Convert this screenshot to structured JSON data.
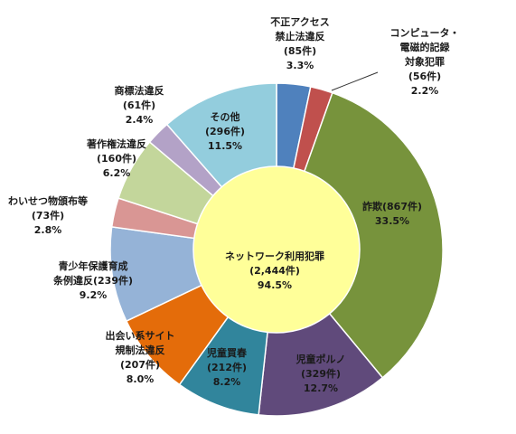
{
  "chart_data": {
    "type": "pie",
    "subtype": "donut",
    "center": {
      "lines": [
        "ネットワーク利用犯罪",
        "(2,444件)",
        "94.5%"
      ],
      "color": "#FFFF99"
    },
    "start_angle_deg": 0,
    "direction": "clockwise",
    "slices": [
      {
        "lines": [
          "不正アクセス",
          "禁止法違反",
          "(85件)",
          "3.3%"
        ],
        "count": 85,
        "percent": 3.3,
        "color": "#4F81BD"
      },
      {
        "lines": [
          "コンピュータ・",
          "電磁的記録",
          "対象犯罪",
          "(56件)",
          "2.2%"
        ],
        "count": 56,
        "percent": 2.2,
        "color": "#C0504D"
      },
      {
        "lines": [
          "詐欺(867件)",
          "33.5%"
        ],
        "count": 867,
        "percent": 33.5,
        "color": "#77933C"
      },
      {
        "lines": [
          "児童ポルノ",
          "(329件)",
          "12.7%"
        ],
        "count": 329,
        "percent": 12.7,
        "color": "#604A7B"
      },
      {
        "lines": [
          "児童買春",
          "(212件)",
          "8.2%"
        ],
        "count": 212,
        "percent": 8.2,
        "color": "#31859C"
      },
      {
        "lines": [
          "出会い系サイト",
          "規制法違反",
          "(207件)",
          "8.0%"
        ],
        "count": 207,
        "percent": 8.0,
        "color": "#E46C0A"
      },
      {
        "lines": [
          "青少年保護育成",
          "条例違反(239件)",
          "9.2%"
        ],
        "count": 239,
        "percent": 9.2,
        "color": "#95B3D7"
      },
      {
        "lines": [
          "わいせつ物頒布等",
          "(73件)",
          "2.8%"
        ],
        "count": 73,
        "percent": 2.8,
        "color": "#D99694"
      },
      {
        "lines": [
          "著作権法違反",
          "(160件)",
          "6.2%"
        ],
        "count": 160,
        "percent": 6.2,
        "color": "#C3D69B"
      },
      {
        "lines": [
          "商標法違反",
          "(61件)",
          "2.4%"
        ],
        "count": 61,
        "percent": 2.4,
        "color": "#B3A2C7"
      },
      {
        "lines": [
          "その他",
          "(296件)",
          "11.5%"
        ],
        "count": 296,
        "percent": 11.5,
        "color": "#93CDDD"
      }
    ]
  }
}
